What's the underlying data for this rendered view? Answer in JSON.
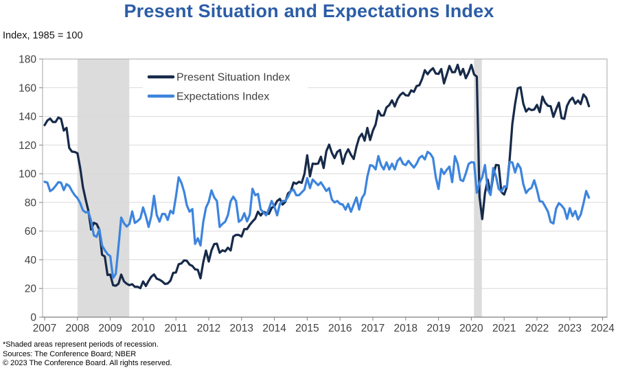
{
  "title": "Present Situation and Expectations Index",
  "axis_note": "Index, 1985 = 100",
  "footnotes": [
    "*Shaded areas represent periods of recession.",
    "Sources: The Conference Board; NBER",
    "© 2023 The Conference Board. All rights reserved."
  ],
  "colors": {
    "title": "#2c5da6",
    "present_situation": "#172a49",
    "expectations": "#3d84dd",
    "recession_band": "#dcdcdc",
    "gridline": "#d9d9d9",
    "plot_border": "#a6a6a6",
    "axis_line": "#7f7f7f",
    "tick_label": "#404040",
    "legend_text": "#3f3f3f"
  },
  "chart_data": {
    "type": "line",
    "title": "Present Situation and Expectations Index",
    "ylabel": "Index, 1985 = 100",
    "xlabel": "",
    "ylim": [
      0,
      180
    ],
    "ytick_step": 20,
    "y_tick_labels": [
      "0",
      "20",
      "40",
      "60",
      "80",
      "100",
      "120",
      "140",
      "160",
      "180"
    ],
    "x_ticks": [
      2007,
      2008,
      2009,
      2010,
      2011,
      2012,
      2013,
      2014,
      2015,
      2016,
      2017,
      2018,
      2019,
      2020,
      2021,
      2022,
      2023,
      2024
    ],
    "x_tick_labels": [
      "2007",
      "2008",
      "2009",
      "2010",
      "2011",
      "2012",
      "2013",
      "2014",
      "2015",
      "2016",
      "2017",
      "2018",
      "2019",
      "2020",
      "2021",
      "2022",
      "2023",
      "2024"
    ],
    "grid": "horizontal",
    "legend_position": "top-left-inside",
    "frequency": "monthly",
    "x_start": {
      "year": 2007,
      "month": 1
    },
    "x_end": {
      "year": 2023,
      "month": 8
    },
    "recession_bands": [
      {
        "from": 2008.0,
        "to": 2009.58
      },
      {
        "from": 2020.08,
        "to": 2020.32
      }
    ],
    "series": [
      {
        "name": "Present Situation Index",
        "color": "#172a49",
        "monthly_values": [
          133.9,
          137.1,
          138.5,
          136.1,
          136.1,
          139.2,
          138.3,
          130.1,
          132.0,
          118.0,
          115.4,
          115.2,
          114.3,
          104.0,
          90.6,
          81.9,
          74.2,
          61.1,
          65.8,
          65.0,
          61.1,
          43.5,
          42.3,
          29.4,
          29.7,
          22.3,
          21.9,
          23.3,
          29.7,
          25.0,
          23.3,
          22.3,
          23.0,
          21.1,
          21.2,
          20.2,
          24.9,
          21.7,
          25.2,
          28.2,
          29.8,
          26.8,
          26.1,
          24.9,
          23.1,
          23.5,
          25.4,
          30.9,
          31.1,
          36.9,
          37.5,
          39.6,
          39.3,
          36.6,
          35.7,
          33.3,
          33.0,
          27.1,
          38.3,
          46.5,
          38.8,
          46.6,
          51.0,
          51.2,
          44.9,
          46.6,
          45.9,
          48.4,
          46.5,
          56.2,
          57.4,
          57.3,
          56.2,
          61.4,
          61.4,
          64.4,
          66.7,
          68.7,
          73.6,
          70.9,
          73.5,
          72.6,
          72.0,
          76.2,
          77.3,
          81.0,
          82.5,
          78.5,
          80.4,
          86.3,
          87.9,
          93.9,
          93.0,
          94.4,
          93.7,
          99.9,
          112.9,
          98.2,
          107.1,
          106.8,
          107.1,
          111.9,
          104.0,
          115.8,
          120.3,
          114.6,
          110.9,
          115.3,
          116.6,
          106.9,
          113.5,
          117.1,
          113.2,
          110.3,
          118.8,
          125.3,
          127.9,
          123.1,
          132.0,
          123.5,
          130.0,
          134.4,
          143.9,
          140.6,
          140.7,
          146.3,
          147.9,
          151.2,
          146.9,
          152.0,
          154.9,
          156.5,
          154.7,
          154.5,
          158.1,
          157.1,
          161.2,
          161.7,
          166.1,
          172.2,
          169.4,
          171.9,
          173.6,
          169.9,
          169.6,
          173.0,
          163.0,
          169.0,
          175.2,
          170.8,
          170.9,
          176.0,
          169.0,
          173.1,
          166.6,
          170.5,
          175.9,
          169.3,
          167.7,
          83.9,
          68.4,
          86.7,
          95.9,
          85.8,
          98.9,
          106.2,
          105.9,
          87.2,
          85.5,
          90.9,
          110.1,
          134.7,
          148.7,
          159.6,
          160.3,
          148.9,
          143.4,
          145.5,
          144.4,
          144.8,
          148.0,
          143.0,
          153.8,
          149.6,
          147.4,
          147.1,
          139.7,
          144.9,
          149.6,
          138.9,
          138.3,
          147.4,
          151.1,
          153.0,
          148.9,
          151.1,
          148.6,
          155.3,
          153.0,
          147.1
        ]
      },
      {
        "name": "Expectations Index",
        "color": "#3d84dd",
        "monthly_values": [
          94.4,
          93.8,
          87.9,
          89.2,
          91.5,
          94.1,
          93.8,
          88.6,
          92.8,
          91.5,
          88.0,
          85.0,
          83.0,
          79.5,
          74.5,
          73.0,
          73.5,
          67.0,
          57.0,
          56.0,
          61.3,
          50.0,
          46.7,
          44.0,
          42.5,
          27.3,
          30.2,
          49.5,
          69.4,
          65.5,
          63.2,
          65.0,
          73.7,
          65.7,
          67.0,
          68.9,
          76.5,
          70.4,
          62.9,
          70.4,
          84.6,
          71.2,
          66.6,
          72.0,
          71.9,
          67.8,
          74.2,
          72.3,
          84.0,
          97.5,
          93.7,
          87.5,
          78.0,
          73.6,
          75.4,
          51.1,
          55.0,
          50.0,
          66.4,
          76.4,
          80.5,
          88.4,
          83.5,
          81.0,
          62.9,
          65.0,
          66.5,
          71.1,
          80.9,
          84.0,
          80.9,
          66.5,
          68.0,
          72.5,
          66.8,
          71.5,
          89.5,
          85.0,
          86.0,
          75.0,
          73.0,
          71.0,
          75.5,
          81.0,
          77.0,
          71.0,
          79.0,
          81.0,
          81.0,
          84.0,
          88.0,
          89.0,
          85.0,
          85.0,
          87.0,
          89.0,
          97.0,
          90.0,
          96.0,
          94.0,
          92.0,
          94.0,
          91.0,
          88.0,
          90.0,
          82.0,
          80.0,
          81.0,
          79.0,
          78.5,
          75.0,
          79.0,
          73.5,
          78.5,
          83.5,
          75.0,
          83.0,
          86.0,
          98.0,
          106.0,
          105.5,
          103.0,
          112.3,
          106.0,
          103.0,
          108.0,
          103.0,
          107.0,
          103.0,
          109.0,
          111.0,
          107.0,
          106.0,
          109.0,
          106.5,
          104.3,
          107.0,
          111.0,
          112.5,
          110.0,
          115.3,
          114.0,
          111.0,
          97.7,
          89.4,
          103.4,
          99.8,
          102.7,
          105.0,
          94.1,
          112.2,
          107.0,
          95.8,
          94.9,
          100.3,
          106.8,
          108.1,
          107.8,
          86.8,
          93.8,
          97.6,
          106.1,
          88.9,
          85.2,
          104.0,
          98.4,
          89.5,
          87.5,
          91.2,
          90.9,
          108.3,
          107.9,
          100.9,
          107.0,
          103.8,
          92.8,
          86.6,
          89.0,
          90.2,
          95.4,
          88.8,
          80.8,
          80.5,
          77.2,
          73.7,
          66.4,
          65.3,
          75.8,
          79.5,
          77.9,
          75.4,
          68.5,
          76.0,
          70.4,
          74.0,
          68.1,
          71.5,
          79.3,
          88.0,
          83.3
        ]
      }
    ]
  }
}
